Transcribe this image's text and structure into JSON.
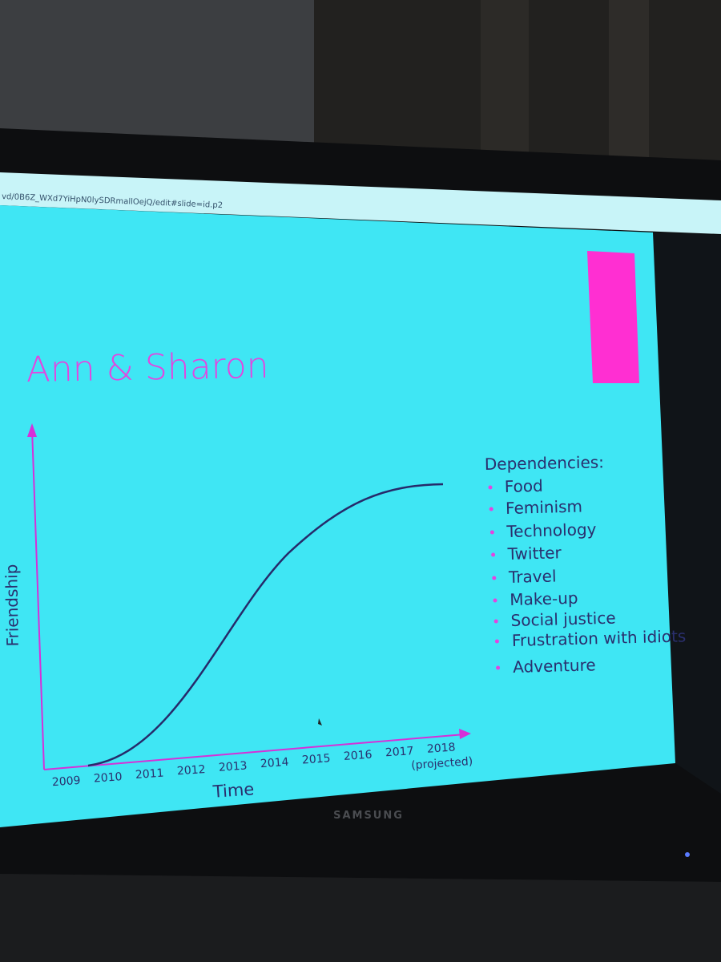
{
  "browser": {
    "url": "vd/0B6Z_WXd7YiHpN0lySDRmallOejQ/edit#slide=id.p2"
  },
  "slide": {
    "title": "Ann & Sharon",
    "y_axis_label": "Friendship",
    "x_axis_label": "Time",
    "x_ticks": [
      "2009",
      "2010",
      "2011",
      "2012",
      "2013",
      "2014",
      "2015",
      "2016",
      "2017",
      "2018"
    ],
    "x_tick_note": "(projected)",
    "list_heading": "Dependencies:",
    "list_items": [
      "Food",
      "Feminism",
      "Technology",
      "Twitter",
      "Travel",
      "Make-up",
      "Social justice",
      "Frustration with idiots",
      "Adventure"
    ]
  },
  "tv": {
    "brand": "SAMSUNG"
  }
}
